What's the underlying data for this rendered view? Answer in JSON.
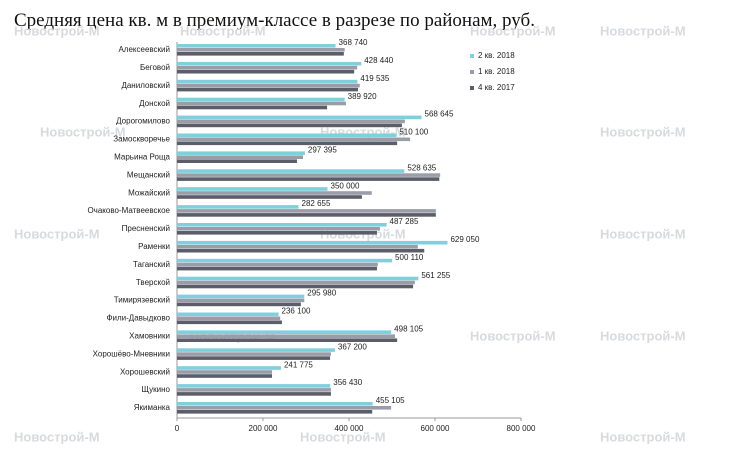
{
  "chart_data": {
    "type": "bar",
    "orientation": "horizontal",
    "title": "Средняя цена кв. м в премиум-классе в разрезе по районам, руб.",
    "watermark": "Новострой-М",
    "categories": [
      "Алексеевский",
      "Беговой",
      "Даниловский",
      "Донской",
      "Дорогомилово",
      "Замоскворечье",
      "Марьина Роща",
      "Мещанский",
      "Можайский",
      "Очаково-Матвеевское",
      "Пресненский",
      "Раменки",
      "Таганский",
      "Тверской",
      "Тимирязевский",
      "Фили-Давыдково",
      "Хамовники",
      "Хорошёво-Мневники",
      "Хорошевский",
      "Щукино",
      "Якиманка"
    ],
    "series": [
      {
        "name": "2 кв. 2018",
        "color": "#7fcfdc",
        "values": [
          368740,
          428440,
          419535,
          389920,
          568645,
          510100,
          297395,
          528635,
          350000,
          282655,
          487285,
          629050,
          500110,
          561255,
          295980,
          236100,
          498105,
          367200,
          241775,
          356430,
          455105
        ],
        "value_labels": [
          "368 740",
          "428 440",
          "419 535",
          "389 920",
          "568 645",
          "510 100",
          "297 395",
          "528 635",
          "350 000",
          "282 655",
          "487 285",
          "629 050",
          "500 110",
          "561 255",
          "295 980",
          "236 100",
          "498 105",
          "367 200",
          "241 775",
          "356 430",
          "455 105"
        ]
      },
      {
        "name": "1 кв. 2018",
        "color": "#9a9ca8",
        "values": [
          390000,
          419000,
          425000,
          393000,
          530000,
          542000,
          293000,
          612000,
          453000,
          602000,
          472000,
          560000,
          467000,
          553000,
          296000,
          240000,
          507000,
          358000,
          221000,
          358000,
          498000
        ]
      },
      {
        "name": "4 кв. 2017",
        "color": "#5b5d68",
        "values": [
          388000,
          412000,
          421000,
          349000,
          523000,
          512000,
          279000,
          610000,
          430000,
          602000,
          465000,
          575000,
          465000,
          549000,
          288000,
          244000,
          512000,
          356000,
          221000,
          358000,
          454000
        ]
      }
    ],
    "xlim": [
      0,
      800000
    ],
    "xticks": [
      0,
      {
        "value": 200000,
        "label": "200 000"
      },
      {
        "value": 400000,
        "label": "400 000"
      },
      {
        "value": 600000,
        "label": "600 000"
      },
      {
        "value": 800000,
        "label": "800 000"
      }
    ],
    "legend": "top-right"
  }
}
